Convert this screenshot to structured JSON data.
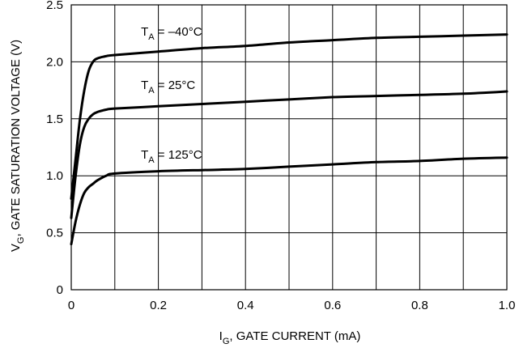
{
  "chart_data": {
    "type": "line",
    "xlabel": {
      "main": "I",
      "sub": "G",
      "rest": ", GATE CURRENT (mA)"
    },
    "ylabel": {
      "main": "V",
      "sub": "G",
      "rest": ", GATE SATURATION VOLTAGE (V)"
    },
    "xlim": [
      0,
      1.0
    ],
    "ylim": [
      0,
      2.5
    ],
    "x_ticks": [
      0,
      0.1,
      0.2,
      0.3,
      0.4,
      0.5,
      0.6,
      0.7,
      0.8,
      0.9,
      1.0
    ],
    "x_tick_labels": [
      "0",
      "",
      "0.2",
      "",
      "0.4",
      "",
      "0.6",
      "",
      "0.8",
      "",
      "1.0"
    ],
    "y_ticks": [
      0,
      0.5,
      1.0,
      1.5,
      2.0,
      2.5
    ],
    "y_tick_labels": [
      "0",
      "0.5",
      "1.0",
      "1.5",
      "2.0",
      "2.5"
    ],
    "grid": true,
    "series": [
      {
        "label": {
          "main": "T",
          "sub": "A",
          "rest": " = –40°C"
        },
        "label_at": [
          0.16,
          2.23
        ],
        "x": [
          0,
          0.01,
          0.02,
          0.03,
          0.04,
          0.05,
          0.06,
          0.08,
          0.1,
          0.2,
          0.3,
          0.4,
          0.5,
          0.6,
          0.7,
          0.8,
          0.9,
          1.0
        ],
        "y": [
          0.8,
          1.15,
          1.5,
          1.75,
          1.92,
          2.0,
          2.03,
          2.05,
          2.06,
          2.09,
          2.12,
          2.14,
          2.17,
          2.19,
          2.21,
          2.22,
          2.23,
          2.24
        ]
      },
      {
        "label": {
          "main": "T",
          "sub": "A",
          "rest": " = 25°C"
        },
        "label_at": [
          0.16,
          1.76
        ],
        "x": [
          0,
          0.01,
          0.02,
          0.03,
          0.04,
          0.05,
          0.06,
          0.08,
          0.1,
          0.2,
          0.3,
          0.4,
          0.5,
          0.6,
          0.7,
          0.8,
          0.9,
          1.0
        ],
        "y": [
          0.63,
          1.0,
          1.28,
          1.43,
          1.5,
          1.54,
          1.56,
          1.58,
          1.59,
          1.61,
          1.63,
          1.65,
          1.67,
          1.69,
          1.7,
          1.71,
          1.72,
          1.74
        ]
      },
      {
        "label": {
          "main": "T",
          "sub": "A",
          "rest": " = 125°C"
        },
        "label_at": [
          0.16,
          1.15
        ],
        "x": [
          0,
          0.01,
          0.02,
          0.03,
          0.04,
          0.05,
          0.06,
          0.08,
          0.1,
          0.2,
          0.3,
          0.4,
          0.5,
          0.6,
          0.7,
          0.8,
          0.9,
          1.0
        ],
        "y": [
          0.4,
          0.6,
          0.75,
          0.85,
          0.9,
          0.93,
          0.96,
          1.0,
          1.02,
          1.04,
          1.05,
          1.06,
          1.08,
          1.1,
          1.12,
          1.13,
          1.15,
          1.16
        ]
      }
    ]
  }
}
